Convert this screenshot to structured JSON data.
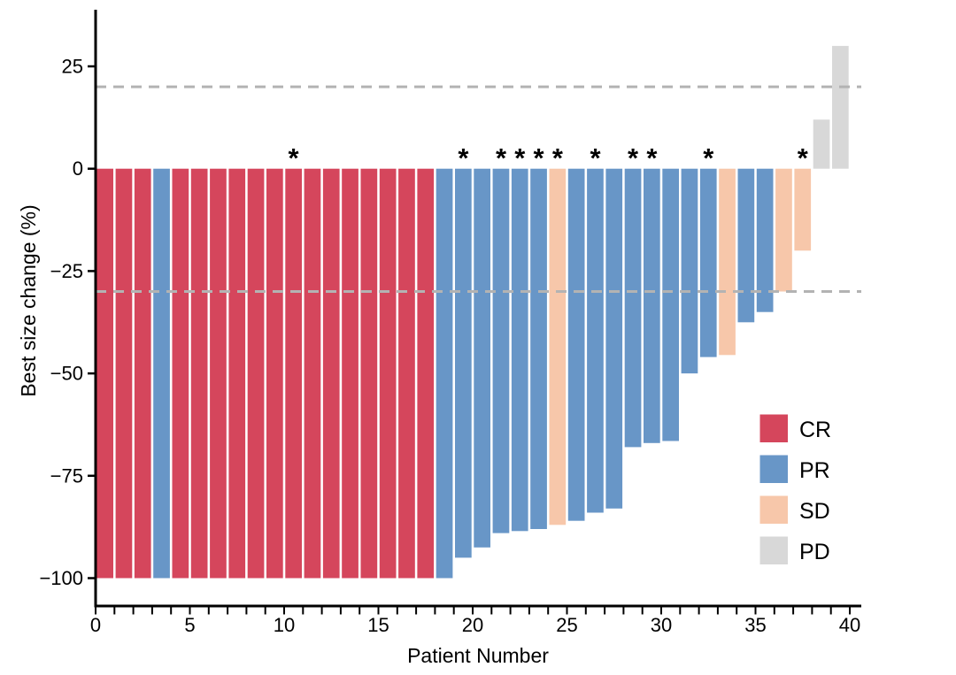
{
  "chart_data": {
    "type": "bar",
    "subtype": "waterfall",
    "title": "",
    "xlabel": "Patient Number",
    "ylabel": "Best size change (%)",
    "ylim": [
      -106.5,
      38.5
    ],
    "xlim": [
      0,
      40.6
    ],
    "y_ticks": [
      25,
      0,
      -25,
      -50,
      -75,
      -100
    ],
    "x_tick_labels": [
      0,
      5,
      10,
      15,
      20,
      25,
      30,
      35,
      40
    ],
    "x_minor_tick_every": 1,
    "x_tick_max": 40,
    "grid": "off",
    "reference_lines": [
      20,
      -30
    ],
    "reference_line_color": "#b3b3b3",
    "annotation_symbol": "*",
    "legend_position": "inside-lower-right",
    "legend": [
      {
        "key": "CR",
        "color": "#d5465c"
      },
      {
        "key": "PR",
        "color": "#6896c7"
      },
      {
        "key": "SD",
        "color": "#f7c7aa"
      },
      {
        "key": "PD",
        "color": "#d8d8d8"
      }
    ],
    "colors": {
      "CR": "#d5465c",
      "PR": "#6896c7",
      "SD": "#f7c7aa",
      "PD": "#d8d8d8"
    },
    "patients": [
      {
        "n": 1,
        "value": -100,
        "response": "CR",
        "star": false
      },
      {
        "n": 2,
        "value": -100,
        "response": "CR",
        "star": false
      },
      {
        "n": 3,
        "value": -100,
        "response": "CR",
        "star": false
      },
      {
        "n": 4,
        "value": -100,
        "response": "PR",
        "star": false
      },
      {
        "n": 5,
        "value": -100,
        "response": "CR",
        "star": false
      },
      {
        "n": 6,
        "value": -100,
        "response": "CR",
        "star": false
      },
      {
        "n": 7,
        "value": -100,
        "response": "CR",
        "star": false
      },
      {
        "n": 8,
        "value": -100,
        "response": "CR",
        "star": false
      },
      {
        "n": 9,
        "value": -100,
        "response": "CR",
        "star": false
      },
      {
        "n": 10,
        "value": -100,
        "response": "CR",
        "star": false
      },
      {
        "n": 11,
        "value": -100,
        "response": "CR",
        "star": true
      },
      {
        "n": 12,
        "value": -100,
        "response": "CR",
        "star": false
      },
      {
        "n": 13,
        "value": -100,
        "response": "CR",
        "star": false
      },
      {
        "n": 14,
        "value": -100,
        "response": "CR",
        "star": false
      },
      {
        "n": 15,
        "value": -100,
        "response": "CR",
        "star": false
      },
      {
        "n": 16,
        "value": -100,
        "response": "CR",
        "star": false
      },
      {
        "n": 17,
        "value": -100,
        "response": "CR",
        "star": false
      },
      {
        "n": 18,
        "value": -100,
        "response": "CR",
        "star": false
      },
      {
        "n": 19,
        "value": -100,
        "response": "PR",
        "star": false
      },
      {
        "n": 20,
        "value": -95,
        "response": "PR",
        "star": true
      },
      {
        "n": 21,
        "value": -92.5,
        "response": "PR",
        "star": false
      },
      {
        "n": 22,
        "value": -89,
        "response": "PR",
        "star": true
      },
      {
        "n": 23,
        "value": -88.5,
        "response": "PR",
        "star": true
      },
      {
        "n": 24,
        "value": -88,
        "response": "PR",
        "star": true
      },
      {
        "n": 25,
        "value": -87,
        "response": "SD",
        "star": true
      },
      {
        "n": 26,
        "value": -86,
        "response": "PR",
        "star": false
      },
      {
        "n": 27,
        "value": -84,
        "response": "PR",
        "star": true
      },
      {
        "n": 28,
        "value": -83,
        "response": "PR",
        "star": false
      },
      {
        "n": 29,
        "value": -68,
        "response": "PR",
        "star": true
      },
      {
        "n": 30,
        "value": -67,
        "response": "PR",
        "star": true
      },
      {
        "n": 31,
        "value": -66.5,
        "response": "PR",
        "star": false
      },
      {
        "n": 32,
        "value": -50,
        "response": "PR",
        "star": false
      },
      {
        "n": 33,
        "value": -46,
        "response": "PR",
        "star": true
      },
      {
        "n": 34,
        "value": -45.5,
        "response": "SD",
        "star": false
      },
      {
        "n": 35,
        "value": -37.5,
        "response": "PR",
        "star": false
      },
      {
        "n": 36,
        "value": -35,
        "response": "PR",
        "star": false
      },
      {
        "n": 37,
        "value": -30,
        "response": "SD",
        "star": false
      },
      {
        "n": 38,
        "value": -20,
        "response": "SD",
        "star": true
      },
      {
        "n": 39,
        "value": 12,
        "response": "PD",
        "star": false
      },
      {
        "n": 40,
        "value": 30,
        "response": "PD",
        "star": false
      }
    ]
  }
}
